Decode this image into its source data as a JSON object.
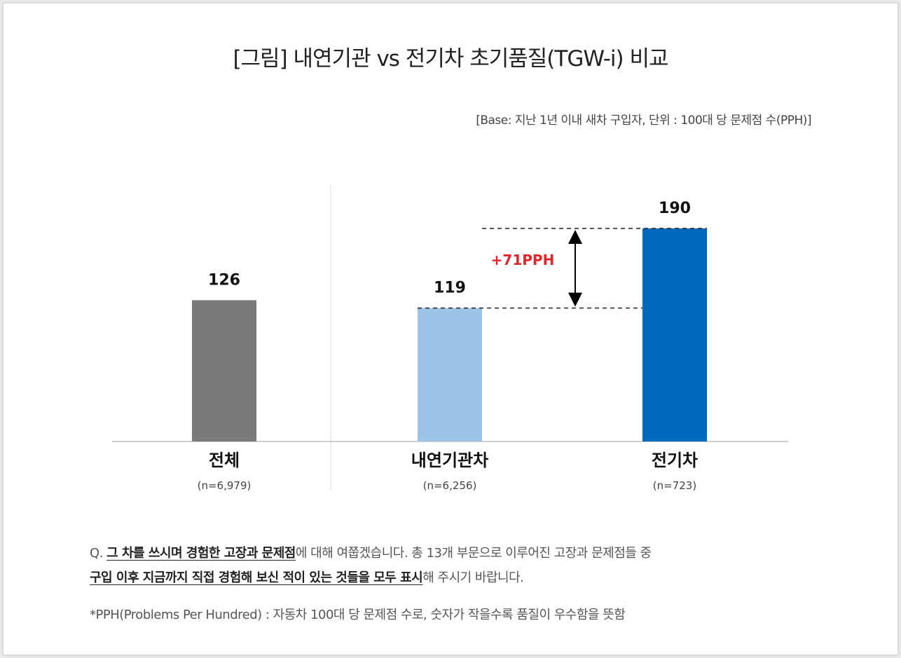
{
  "title": "[그림] 내연기관 vs 전기차 초기품질(TGW-i) 비교",
  "base_note": "[Base: 지난 1년 이내 새차 구입자, 단위 : 100대 당 문제점 수(PPH)]",
  "chart_data": {
    "type": "bar",
    "title": "[그림] 내연기관 vs 전기차 초기품질(TGW-i) 비교",
    "unit": "PPH",
    "categories": [
      "전체",
      "내연기관차",
      "전기차"
    ],
    "sample_sizes": [
      "(n=6,979)",
      "(n=6,256)",
      "(n=723)"
    ],
    "values": [
      126,
      119,
      190
    ],
    "value_labels": [
      "126",
      "119",
      "190"
    ],
    "colors": [
      "#7a7a7a",
      "#9dc3e6",
      "#0069bd"
    ],
    "difference_label": "+71PPH",
    "difference_color": "#e0262b",
    "ylim": [
      0,
      200
    ]
  },
  "question": {
    "prefix": "Q. ",
    "hl1": "그 차를 쓰시며 경험한 고장과 문제점",
    "mid": "에 대해 여쭙겠습니다. 총 13개 부문으로 이루어진 고장과 문제점들 중",
    "hl2": "구입 이후 지금까지 직접 경험해 보신 적이 있는 것들을 모두 표시",
    "suffix": "해 주시기 바랍니다."
  },
  "footnote": "*PPH(Problems Per Hundred) : 자동차 100대 당 문제점 수로, 숫자가 작을수록 품질이 우수함을 뜻함"
}
